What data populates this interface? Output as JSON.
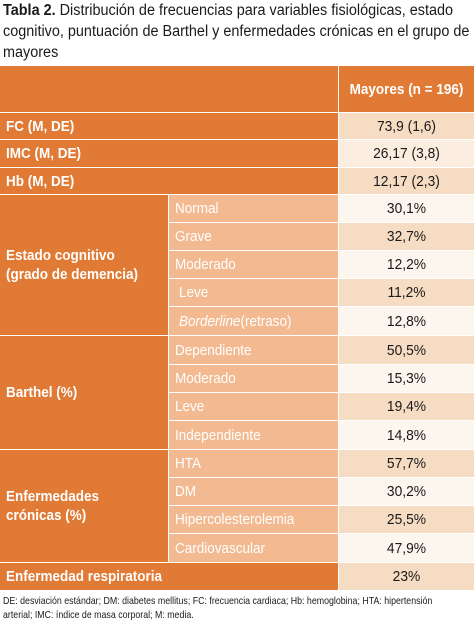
{
  "caption": {
    "label": "Tabla 2.",
    "line1": " Distribución de frecuencias para variables fisiológicas, estado",
    "line2": "cognitivo, puntuación de Barthel y enfermedades crónicas en el grupo de",
    "line3": "mayores"
  },
  "header": {
    "column": "Mayores (n = 196)"
  },
  "rows": {
    "fc": {
      "label": "FC (M, DE)",
      "value": "73,9 (1,6)"
    },
    "imc": {
      "label": "IMC (M, DE)",
      "value": "26,17 (3,8)"
    },
    "hb": {
      "label": "Hb (M, DE)",
      "value": "12,17 (2,3)"
    },
    "cognitivo": {
      "label_line1": "Estado cognitivo",
      "label_line2": "(grado de demencia)",
      "items": [
        {
          "label": "Normal",
          "value": "30,1%"
        },
        {
          "label": "Grave",
          "value": "32,7%"
        },
        {
          "label": "Moderado",
          "value": "12,2%"
        },
        {
          "label": "Leve",
          "value": "11,2%"
        },
        {
          "label_italic": "Borderline",
          "label_rest": " (retraso)",
          "value": "12,8%"
        }
      ]
    },
    "barthel": {
      "label": "Barthel (%)",
      "items": [
        {
          "label": "Dependiente",
          "value": "50,5%"
        },
        {
          "label": "Moderado",
          "value": "15,3%"
        },
        {
          "label": "Leve",
          "value": "19,4%"
        },
        {
          "label": "Independiente",
          "value": "14,8%"
        }
      ]
    },
    "cronicas": {
      "label_line1": "Enfermedades",
      "label_line2": "crónicas (%)",
      "items": [
        {
          "label": "HTA",
          "value": "57,7%"
        },
        {
          "label": "DM",
          "value": "30,2%"
        },
        {
          "label": "Hipercolesterolemia",
          "value": "25,5%"
        },
        {
          "label": "Cardiovascular",
          "value": "47,9%"
        }
      ]
    },
    "respiratoria": {
      "label": "Enfermedad respiratoria",
      "value": "23%"
    }
  },
  "footnote": {
    "line1": "DE: desviación estándar; DM: diabetes mellitus; FC: frecuencia cardiaca; Hb: hemoglobina; HTA: hipertensión",
    "line2": "arterial; IMC: índice de masa corporal; M: media."
  }
}
